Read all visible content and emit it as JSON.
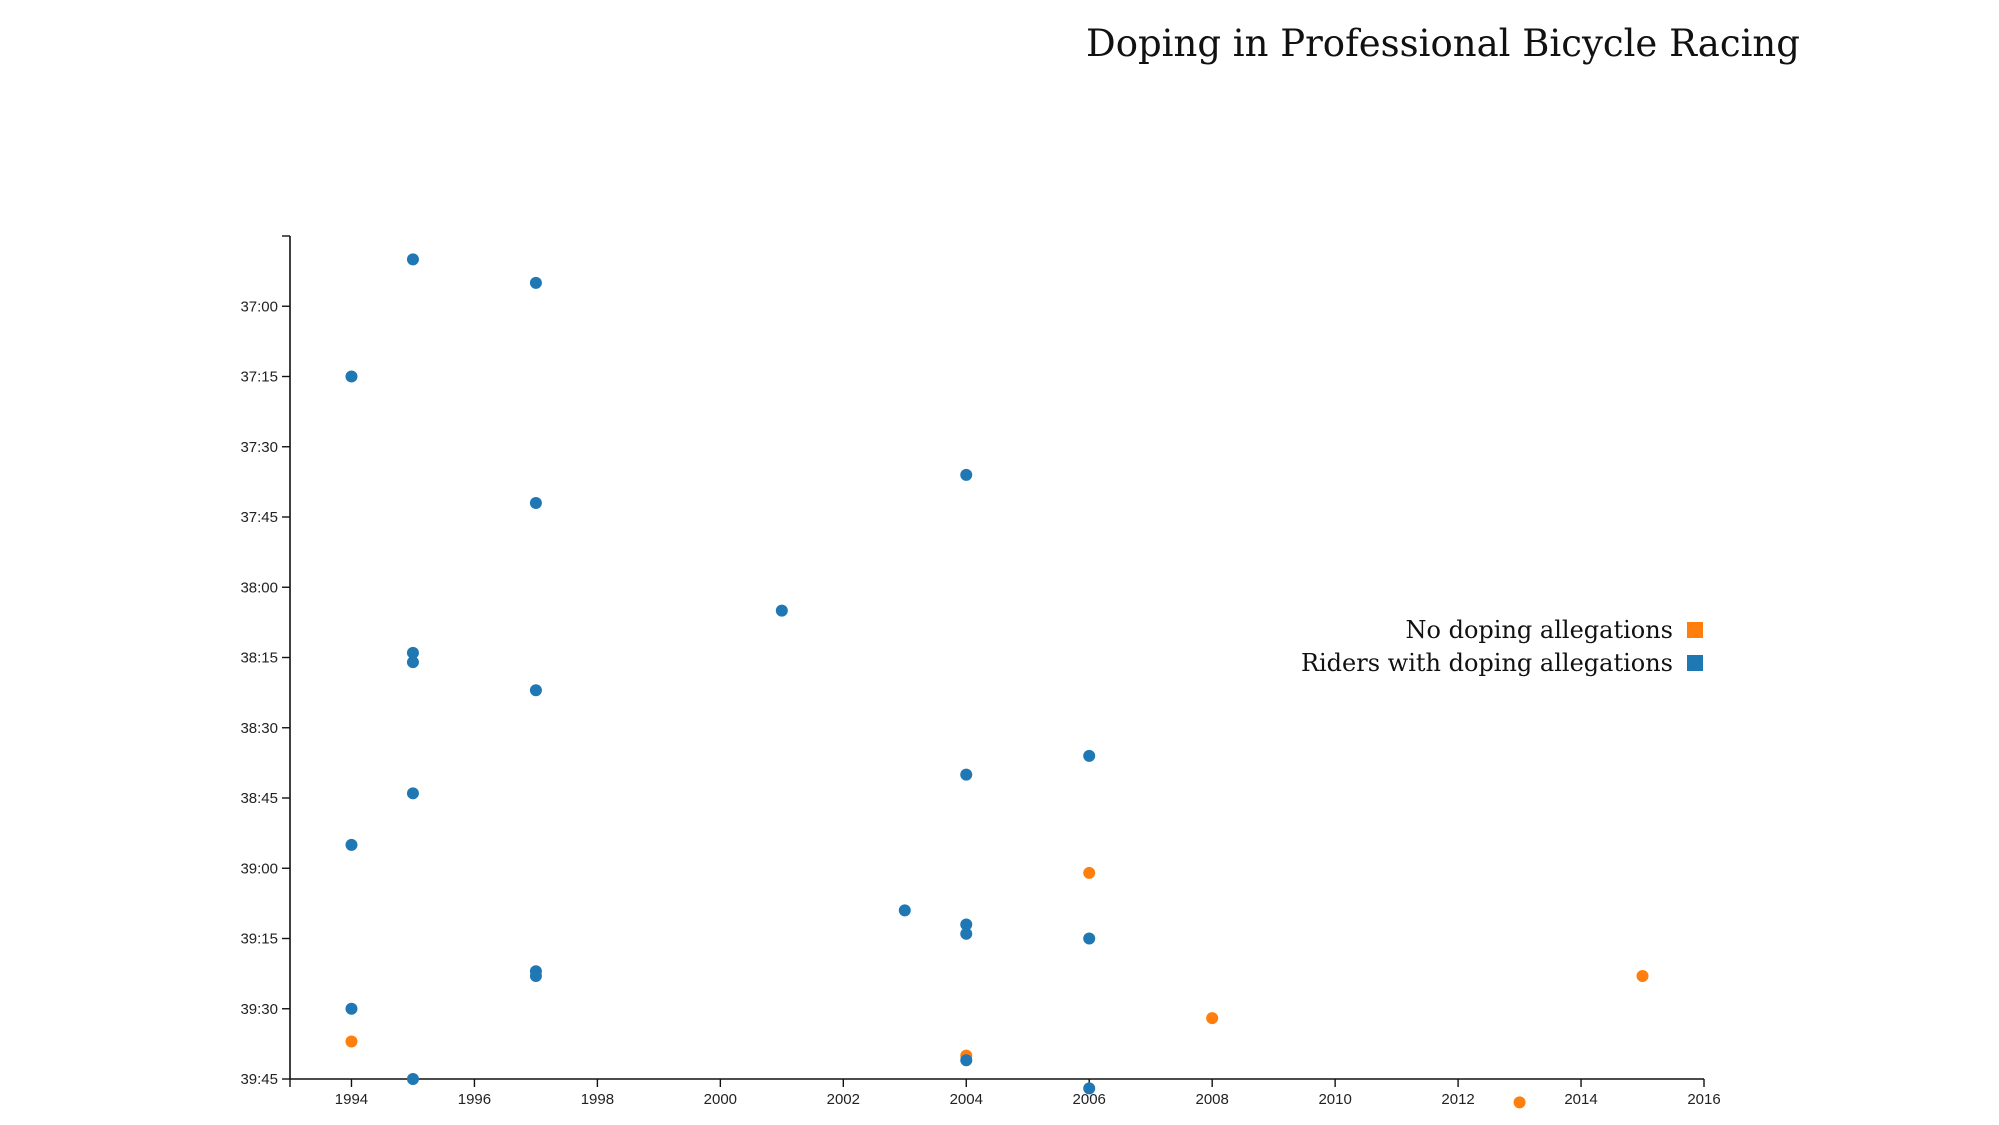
{
  "chart_data": {
    "type": "scatter",
    "title": "Doping in Professional Bicycle Racing",
    "xlabel": "",
    "ylabel": "",
    "xlim": [
      1993,
      2016
    ],
    "ylim_seconds": [
      2205,
      2385
    ],
    "x_ticks": [
      "1994",
      "1996",
      "1998",
      "2000",
      "2002",
      "2004",
      "2006",
      "2008",
      "2010",
      "2012",
      "2014",
      "2016"
    ],
    "y_ticks": [
      "37:00",
      "37:15",
      "37:30",
      "37:45",
      "38:00",
      "38:15",
      "38:30",
      "38:45",
      "39:00",
      "39:15",
      "39:30",
      "39:45"
    ],
    "y_axis": "time (mm:ss), increasing downward",
    "legend_position": "right",
    "legend": [
      {
        "label": "No doping allegations",
        "color": "#ff7f0e"
      },
      {
        "label": "Riders with doping allegations",
        "color": "#1f77b4"
      }
    ],
    "series": [
      {
        "name": "No doping allegations",
        "color": "#ff7f0e",
        "points": [
          {
            "x": 1994,
            "y": "39:37"
          },
          {
            "x": 2004,
            "y": "39:40"
          },
          {
            "x": 2006,
            "y": "39:01"
          },
          {
            "x": 2008,
            "y": "39:32"
          },
          {
            "x": 2013,
            "y": "39:50"
          },
          {
            "x": 2015,
            "y": "39:23"
          }
        ]
      },
      {
        "name": "Riders with doping allegations",
        "color": "#1f77b4",
        "points": [
          {
            "x": 1995,
            "y": "36:50"
          },
          {
            "x": 1997,
            "y": "36:55"
          },
          {
            "x": 1994,
            "y": "37:15"
          },
          {
            "x": 2004,
            "y": "37:36"
          },
          {
            "x": 1997,
            "y": "37:42"
          },
          {
            "x": 2001,
            "y": "38:05"
          },
          {
            "x": 1995,
            "y": "38:14"
          },
          {
            "x": 1995,
            "y": "38:16"
          },
          {
            "x": 1997,
            "y": "38:22"
          },
          {
            "x": 2006,
            "y": "38:36"
          },
          {
            "x": 2004,
            "y": "38:40"
          },
          {
            "x": 1995,
            "y": "38:44"
          },
          {
            "x": 1994,
            "y": "38:55"
          },
          {
            "x": 2003,
            "y": "39:09"
          },
          {
            "x": 2004,
            "y": "39:12"
          },
          {
            "x": 2004,
            "y": "39:14"
          },
          {
            "x": 2006,
            "y": "39:15"
          },
          {
            "x": 1997,
            "y": "39:22"
          },
          {
            "x": 1997,
            "y": "39:23"
          },
          {
            "x": 1994,
            "y": "39:30"
          },
          {
            "x": 2004,
            "y": "39:41"
          },
          {
            "x": 1995,
            "y": "39:45"
          },
          {
            "x": 2006,
            "y": "39:47"
          }
        ]
      }
    ]
  }
}
